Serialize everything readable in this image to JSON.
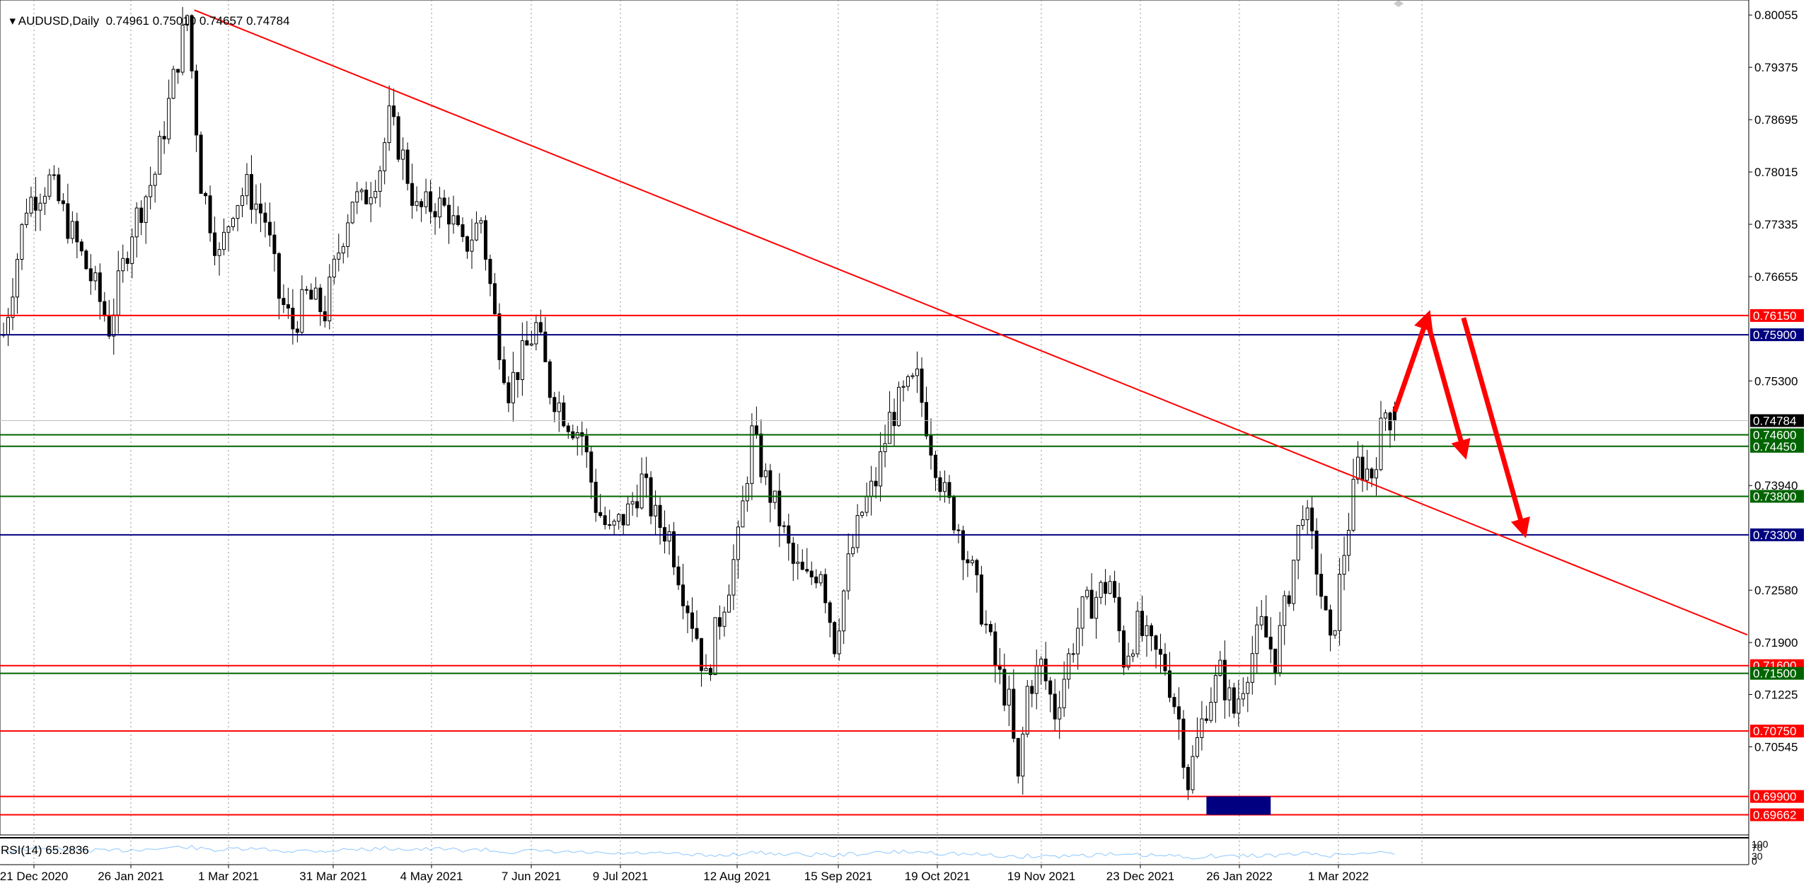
{
  "header": {
    "symbol": "AUDUSD",
    "timeframe": "Daily",
    "ohlc": "0.74961 0.75010 0.74657 0.74784"
  },
  "rsi": {
    "label": "RSI(14) 65.2836",
    "scale": [
      "100",
      "70",
      "30",
      "0"
    ]
  },
  "colors": {
    "red": "#ff0000",
    "green": "#006400",
    "navy": "#000080",
    "candle": "#000000",
    "grid": "#c0c0c0",
    "rsi_line": "#1e90ff"
  },
  "chart_data": {
    "type": "candlestick",
    "symbol": "AUDUSD",
    "timeframe": "Daily",
    "x_ticks": [
      "21 Dec 2020",
      "26 Jan 2021",
      "1 Mar 2021",
      "31 Mar 2021",
      "4 May 2021",
      "7 Jun 2021",
      "9 Jul 2021",
      "12 Aug 2021",
      "15 Sep 2021",
      "19 Oct 2021",
      "19 Nov 2021",
      "23 Dec 2021",
      "26 Jan 2022",
      "1 Mar 2022"
    ],
    "y_ticks": [
      0.80055,
      0.79375,
      0.78695,
      0.78015,
      0.77335,
      0.76655,
      0.753,
      0.7394,
      0.7258,
      0.719,
      0.71225,
      0.70545
    ],
    "ylim": [
      0.694,
      0.8025
    ],
    "current_price": "0.74784",
    "close_path": [
      [
        0,
        0.759
      ],
      [
        5,
        0.776
      ],
      [
        10,
        0.779
      ],
      [
        15,
        0.772
      ],
      [
        20,
        0.765
      ],
      [
        23,
        0.76
      ],
      [
        28,
        0.773
      ],
      [
        33,
        0.78
      ],
      [
        38,
        0.795
      ],
      [
        40,
        0.8005
      ],
      [
        43,
        0.779
      ],
      [
        47,
        0.769
      ],
      [
        50,
        0.776
      ],
      [
        53,
        0.778
      ],
      [
        57,
        0.774
      ],
      [
        60,
        0.764
      ],
      [
        63,
        0.76
      ],
      [
        66,
        0.764
      ],
      [
        70,
        0.762
      ],
      [
        73,
        0.77
      ],
      [
        76,
        0.777
      ],
      [
        78,
        0.776
      ],
      [
        82,
        0.781
      ],
      [
        84,
        0.787
      ],
      [
        87,
        0.782
      ],
      [
        90,
        0.775
      ],
      [
        94,
        0.776
      ],
      [
        97,
        0.775
      ],
      [
        100,
        0.77
      ],
      [
        104,
        0.774
      ],
      [
        107,
        0.761
      ],
      [
        110,
        0.752
      ],
      [
        113,
        0.756
      ],
      [
        116,
        0.76
      ],
      [
        119,
        0.752
      ],
      [
        123,
        0.748
      ],
      [
        126,
        0.746
      ],
      [
        129,
        0.737
      ],
      [
        132,
        0.733
      ],
      [
        136,
        0.736
      ],
      [
        139,
        0.74
      ],
      [
        142,
        0.735
      ],
      [
        145,
        0.733
      ],
      [
        148,
        0.726
      ],
      [
        151,
        0.72
      ],
      [
        153,
        0.714
      ],
      [
        155,
        0.72
      ],
      [
        158,
        0.727
      ],
      [
        160,
        0.732
      ],
      [
        163,
        0.746
      ],
      [
        166,
        0.74
      ],
      [
        169,
        0.735
      ],
      [
        172,
        0.729
      ],
      [
        175,
        0.727
      ],
      [
        178,
        0.729
      ],
      [
        181,
        0.719
      ],
      [
        184,
        0.729
      ],
      [
        187,
        0.736
      ],
      [
        190,
        0.74
      ],
      [
        193,
        0.748
      ],
      [
        196,
        0.751
      ],
      [
        199,
        0.753
      ],
      [
        202,
        0.745
      ],
      [
        205,
        0.738
      ],
      [
        208,
        0.734
      ],
      [
        211,
        0.728
      ],
      [
        214,
        0.721
      ],
      [
        216,
        0.716
      ],
      [
        219,
        0.711
      ],
      [
        221,
        0.7005
      ],
      [
        223,
        0.713
      ],
      [
        226,
        0.716
      ],
      [
        229,
        0.71
      ],
      [
        232,
        0.717
      ],
      [
        235,
        0.723
      ],
      [
        238,
        0.725
      ],
      [
        241,
        0.727
      ],
      [
        244,
        0.717
      ],
      [
        247,
        0.721
      ],
      [
        250,
        0.718
      ],
      [
        253,
        0.716
      ],
      [
        256,
        0.709
      ],
      [
        258,
        0.701
      ],
      [
        260,
        0.706
      ],
      [
        262,
        0.711
      ],
      [
        265,
        0.715
      ],
      [
        268,
        0.71
      ],
      [
        271,
        0.716
      ],
      [
        274,
        0.721
      ],
      [
        277,
        0.717
      ],
      [
        280,
        0.726
      ],
      [
        283,
        0.737
      ],
      [
        286,
        0.729
      ],
      [
        289,
        0.718
      ],
      [
        292,
        0.731
      ],
      [
        295,
        0.742
      ],
      [
        298,
        0.741
      ],
      [
        301,
        0.749
      ],
      [
        303,
        0.7478
      ]
    ],
    "horizontal_levels": [
      {
        "value": 0.7615,
        "label": "0.76150",
        "color": "red"
      },
      {
        "value": 0.759,
        "label": "0.75900",
        "color": "navy"
      },
      {
        "value": 0.746,
        "label": "0.74600",
        "color": "green"
      },
      {
        "value": 0.7445,
        "label": "0.74450",
        "color": "green"
      },
      {
        "value": 0.738,
        "label": "0.73800",
        "color": "green"
      },
      {
        "value": 0.733,
        "label": "0.73300",
        "color": "navy"
      },
      {
        "value": 0.716,
        "label": "0.71600",
        "color": "red"
      },
      {
        "value": 0.715,
        "label": "0.71500",
        "color": "green"
      },
      {
        "value": 0.7075,
        "label": "0.70750",
        "color": "red"
      },
      {
        "value": 0.699,
        "label": "0.69900",
        "color": "red"
      },
      {
        "value": 0.69662,
        "label": "0.69662",
        "color": "red"
      }
    ],
    "trendline": {
      "from": [
        40,
        0.8012
      ],
      "to": [
        365,
        0.72
      ],
      "color": "red"
    },
    "annotations": [
      {
        "type": "arrow",
        "color": "red",
        "path": [
          [
            303,
            0.749
          ],
          [
            310,
            0.761
          ]
        ]
      },
      {
        "type": "arrow",
        "color": "red",
        "path": [
          [
            310,
            0.761
          ],
          [
            318,
            0.744
          ]
        ]
      },
      {
        "type": "arrow",
        "color": "red",
        "path": [
          [
            318,
            0.7612
          ],
          [
            331,
            0.7338
          ]
        ]
      },
      {
        "type": "zone",
        "color": "navy",
        "x": [
          262,
          276
        ],
        "y": [
          0.69662,
          0.699
        ]
      }
    ]
  }
}
